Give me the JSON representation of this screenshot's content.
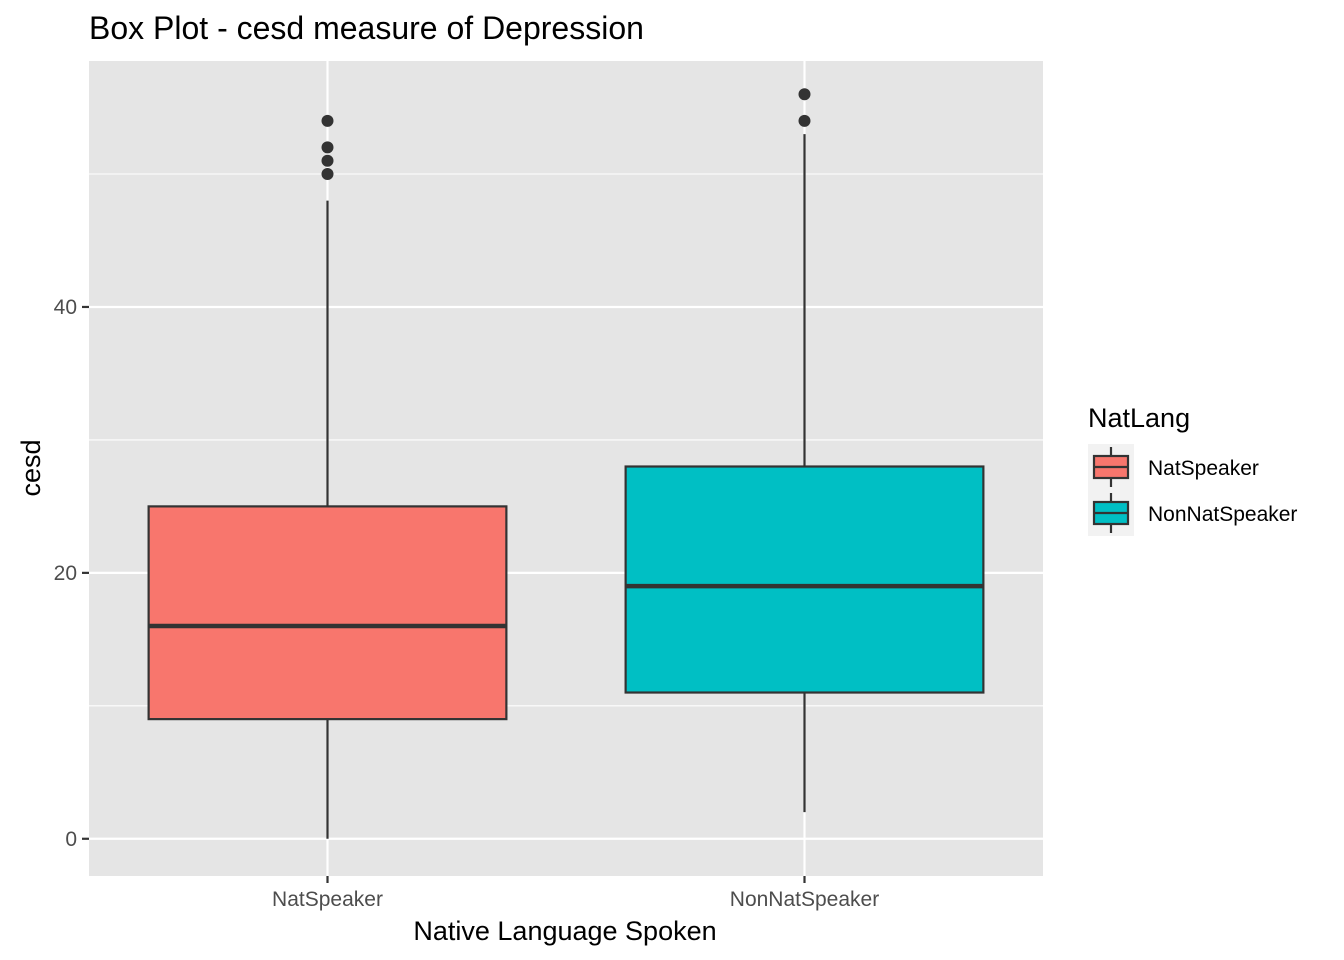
{
  "chart_data": {
    "type": "box",
    "title": "Box Plot - cesd measure of Depression",
    "xlabel": "Native Language Spoken",
    "ylabel": "cesd",
    "ylim": [
      -2.8,
      58.5
    ],
    "yticks": [
      0,
      20,
      40
    ],
    "y_minor_gridlines": [
      10,
      30,
      50
    ],
    "grid": true,
    "categories": [
      "NatSpeaker",
      "NonNatSpeaker"
    ],
    "series": [
      {
        "name": "NatSpeaker",
        "color": "#F8766D",
        "min": 0,
        "q1": 9,
        "median": 16,
        "q3": 25,
        "max": 48,
        "outliers": [
          50,
          51,
          52,
          54
        ]
      },
      {
        "name": "NonNatSpeaker",
        "color": "#00BFC4",
        "min": 2,
        "q1": 11,
        "median": 19,
        "q3": 28,
        "max": 53,
        "outliers": [
          54,
          56
        ]
      }
    ],
    "legend": {
      "title": "NatLang",
      "position": "right"
    },
    "panel_background": "#E5E5E5",
    "gridline_color": "#FFFFFF"
  }
}
